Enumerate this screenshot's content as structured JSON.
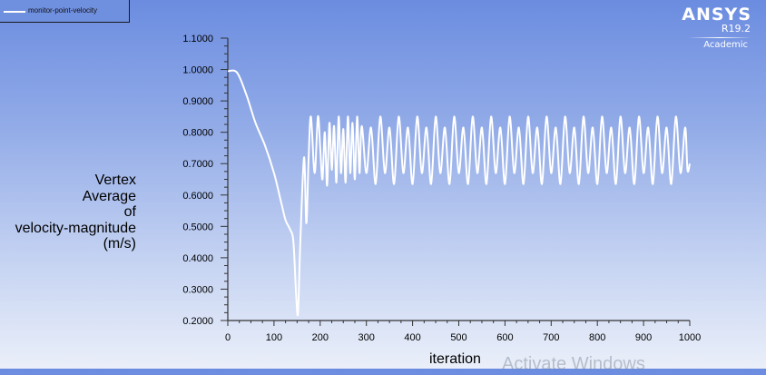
{
  "legend": {
    "series_label": "monitor-point-velocity",
    "line_color": "#ffffff"
  },
  "logo": {
    "name": "ANSYS",
    "version": "R19.2",
    "edition": "Academic"
  },
  "axes": {
    "ylabel_lines": [
      "Vertex",
      "Average",
      "of",
      "velocity-magnitude",
      "(m/s)"
    ],
    "xlabel": "iteration"
  },
  "watermark": "Activate Windows",
  "colors": {
    "background_top": "#6b8ce0",
    "background_bottom": "#eaeff9",
    "curve": "#ffffff",
    "axis": "#333333"
  },
  "chart_data": {
    "type": "line",
    "title": "",
    "xlabel": "iteration",
    "ylabel": "Vertex Average of velocity-magnitude (m/s)",
    "xlim": [
      0,
      1000
    ],
    "ylim": [
      0.2,
      1.1
    ],
    "x_ticks": [
      0,
      100,
      200,
      300,
      400,
      500,
      600,
      700,
      800,
      900,
      1000
    ],
    "y_ticks": [
      "0.2000",
      "0.3000",
      "0.4000",
      "0.5000",
      "0.6000",
      "0.7000",
      "0.8000",
      "0.9000",
      "1.0000",
      "1.1000"
    ],
    "grid": false,
    "legend_position": "top-left",
    "series": [
      {
        "name": "monitor-point-velocity",
        "description": "Starts at 1.0, decays to a sharp minimum ~0.225 near iteration 150, then settles into a periodic oscillation (period ~20 iterations) between ~0.63-0.67 and ~0.81-0.85 with alternating tall/short peaks, ending ~0.70 at iteration 1000.",
        "x": [
          0,
          20,
          40,
          60,
          80,
          100,
          115,
          125,
          135,
          142,
          148,
          152,
          157,
          165,
          170,
          175,
          180,
          188,
          195,
          200,
          205,
          210,
          215,
          220,
          225,
          230,
          235,
          240,
          245,
          250,
          255,
          260,
          265,
          270,
          275,
          280,
          285,
          290
        ],
        "y": [
          0.995,
          0.99,
          0.92,
          0.83,
          0.76,
          0.67,
          0.58,
          0.52,
          0.49,
          0.45,
          0.28,
          0.225,
          0.45,
          0.72,
          0.51,
          0.72,
          0.85,
          0.67,
          0.85,
          0.75,
          0.65,
          0.8,
          0.63,
          0.83,
          0.68,
          0.82,
          0.64,
          0.85,
          0.67,
          0.81,
          0.64,
          0.85,
          0.67,
          0.83,
          0.65,
          0.85,
          0.67,
          0.82
        ],
        "steady_oscillation": {
          "start_iteration": 180,
          "period_iterations": 20,
          "tall_peak": 0.85,
          "short_peak": 0.815,
          "deep_trough": 0.635,
          "shallow_trough": 0.67,
          "final_value": 0.7
        }
      }
    ]
  }
}
